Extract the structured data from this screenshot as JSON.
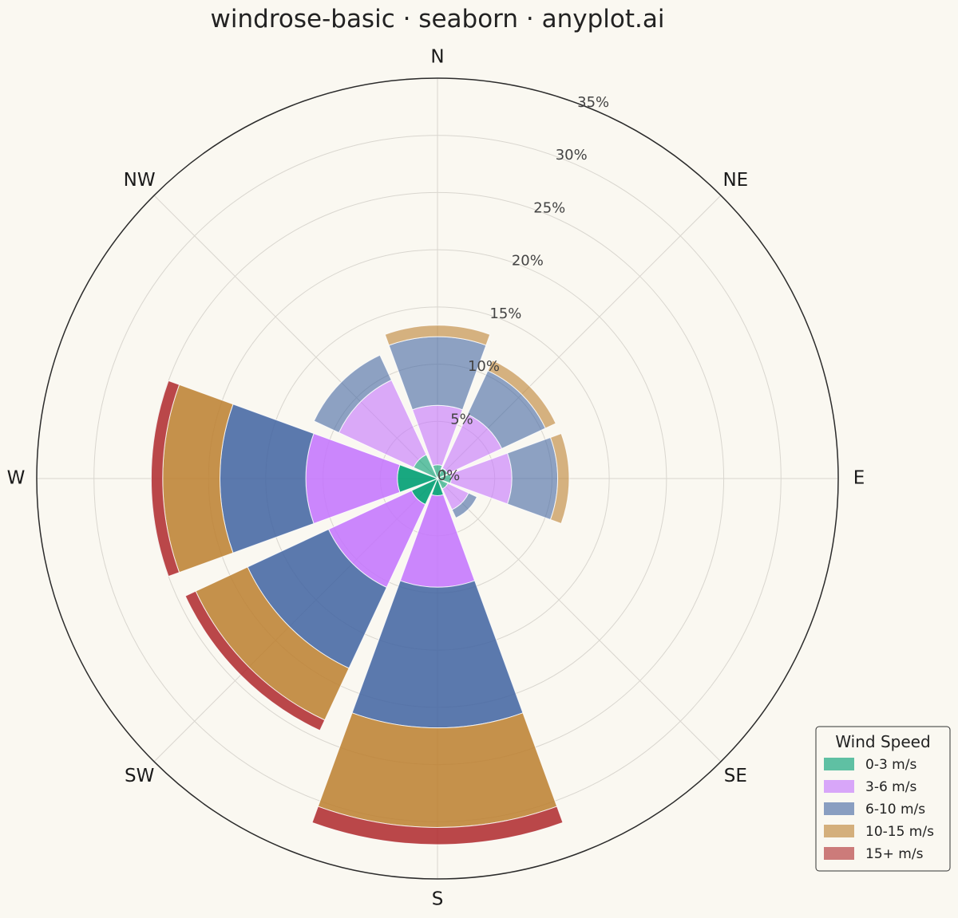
{
  "title": "windrose-basic · seaborn · anyplot.ai",
  "chart_data": {
    "type": "windrose",
    "directions": [
      "N",
      "NE",
      "E",
      "SE",
      "S",
      "SW",
      "W",
      "NW"
    ],
    "radial_ticks": [
      "0%",
      "5%",
      "10%",
      "15%",
      "20%",
      "25%",
      "30%",
      "35%"
    ],
    "radial_max": 35,
    "grid": true,
    "legend_title": "Wind Speed",
    "legend_position": "bottom-right",
    "series": [
      {
        "name": "0-3 m/s",
        "color": "#009E73",
        "values": [
          1.2,
          1.0,
          1.2,
          1.0,
          1.5,
          2.5,
          3.5,
          2.3
        ]
      },
      {
        "name": "3-6 m/s",
        "color": "#C475FD",
        "values": [
          5.2,
          5.2,
          5.3,
          2.0,
          8.0,
          8.0,
          8.0,
          7.2
        ]
      },
      {
        "name": "6-10 m/s",
        "color": "#4467A3",
        "values": [
          6.0,
          4.2,
          4.0,
          0.8,
          12.3,
          7.8,
          7.5,
          2.4
        ]
      },
      {
        "name": "10-15 m/s",
        "color": "#BD8233",
        "values": [
          1.0,
          1.0,
          1.0,
          0.0,
          8.7,
          5.0,
          5.0,
          0.0
        ]
      },
      {
        "name": "15+ m/s",
        "color": "#B02E31",
        "values": [
          0.0,
          0.0,
          0.0,
          0.0,
          1.5,
          1.0,
          1.0,
          0.0
        ]
      }
    ]
  }
}
